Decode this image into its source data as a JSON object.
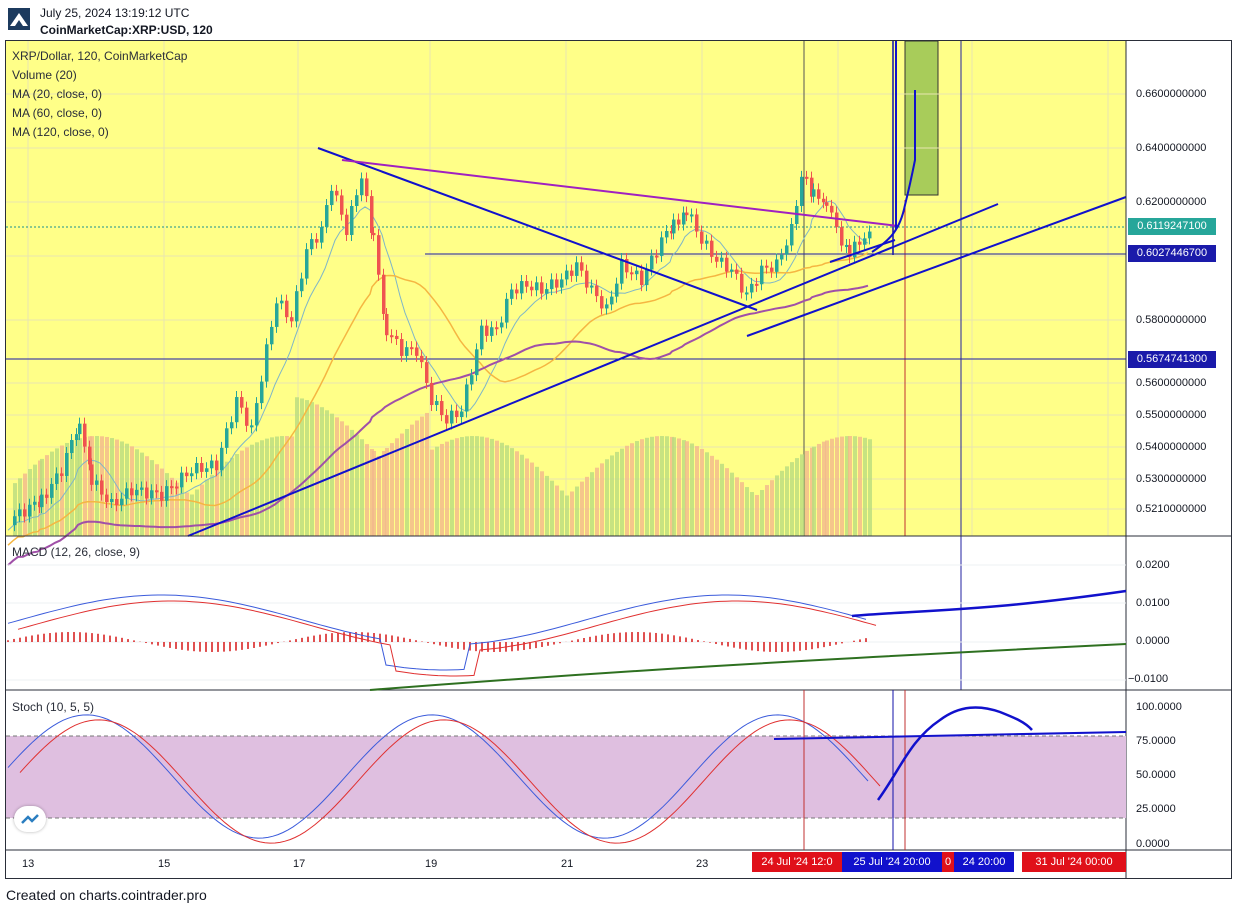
{
  "header": {
    "timestamp": "July 25, 2024 13:19:12 UTC",
    "symbol_line": "CoinMarketCap:XRP:USD, 120"
  },
  "main_pane": {
    "labels": [
      "XRP/Dollar, 120, CoinMarketCap",
      "Volume (20)",
      "MA (20, close, 0)",
      "MA (60, close, 0)",
      "MA (120, close, 0)"
    ],
    "price_axis": [
      "0.6600000000",
      "0.6400000000",
      "0.6200000000",
      "0.5800000000",
      "0.5600000000",
      "0.5500000000",
      "0.5400000000",
      "0.5300000000",
      "0.5210000000"
    ],
    "price_tags": [
      {
        "value": "0.6119247100",
        "color": "#26a69a"
      },
      {
        "value": "0.6027446700",
        "color": "#1a1aaa"
      },
      {
        "value": "0.5674741300",
        "color": "#1a1aaa"
      }
    ],
    "background_color": "#ffff88"
  },
  "macd_pane": {
    "label": "MACD (12, 26, close, 9)",
    "axis": [
      "0.0200",
      "0.0100",
      "0.0000",
      "−0.0100"
    ]
  },
  "stoch_pane": {
    "label": "Stoch (10, 5, 5)",
    "axis": [
      "100.0000",
      "75.0000",
      "50.0000",
      "25.0000",
      "0.0000"
    ]
  },
  "time_axis": {
    "labels": [
      "13",
      "15",
      "17",
      "19",
      "21",
      "23"
    ],
    "flags": [
      {
        "text": "24 Jul '24   12:0",
        "color": "#e0101a"
      },
      {
        "text": "25 Jul '24   20:00",
        "color": "#1111cc"
      },
      {
        "text": "0",
        "color": "#e0101a"
      },
      {
        "text": "24   20:00",
        "color": "#1111cc"
      },
      {
        "text": "31 Jul '24   00:00",
        "color": "#e0101a"
      }
    ]
  },
  "footer": "Created on charts.cointrader.pro",
  "icons": {
    "logo": "cointrader-logo-icon",
    "badge": "tradingview-cloud-icon"
  }
}
